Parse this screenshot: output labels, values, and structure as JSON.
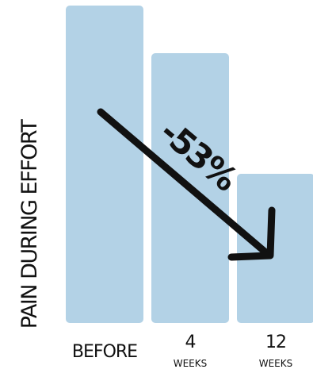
{
  "chart_data": {
    "type": "bar",
    "ylabel": "PAIN DURING EFFORT",
    "categories": [
      {
        "main": "BEFORE",
        "sub": ""
      },
      {
        "main": "4",
        "sub": "WEEKS"
      },
      {
        "main": "12",
        "sub": "WEEKS"
      }
    ],
    "values": [
      100,
      85,
      47
    ],
    "ylim": [
      0,
      100
    ],
    "grid": false,
    "bar_color": "#b3d2e6",
    "annotation": {
      "text": "-53%",
      "from_category": 0,
      "to_category": 2
    }
  }
}
